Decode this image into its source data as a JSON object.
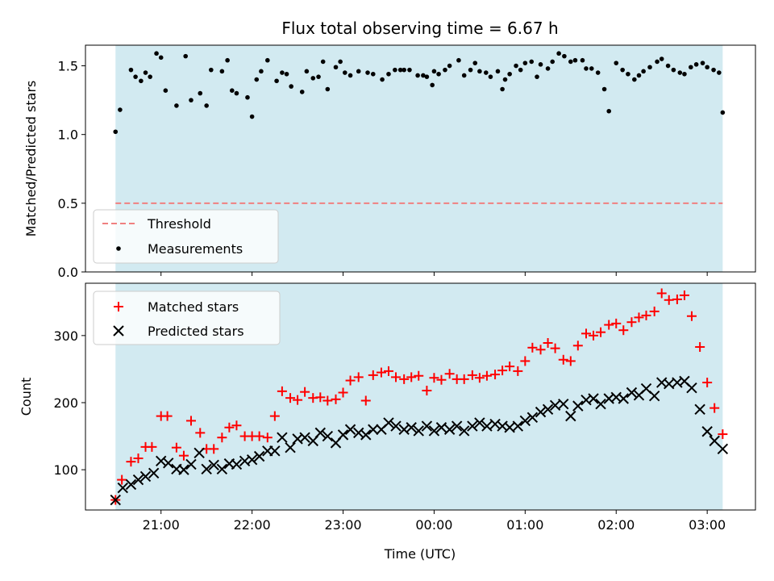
{
  "chart_data": {
    "title": "Flux total observing time = 6.67 h",
    "xlabel": "Time (UTC)",
    "xticks": [
      "21:00",
      "22:00",
      "23:00",
      "00:00",
      "01:00",
      "02:00",
      "03:00"
    ],
    "shade_color": "#add8e6",
    "panels": [
      {
        "type": "scatter",
        "ylabel": "Matched/Predicted stars",
        "ylim": [
          0,
          1.65
        ],
        "yticks": [
          "0.0",
          "0.5",
          "1.0",
          "1.5"
        ],
        "legend_position": "lower-left",
        "threshold": {
          "name": "Threshold",
          "y": 0.5,
          "color": "#f08080"
        },
        "series": [
          {
            "name": "Measurements",
            "color": "#000000",
            "marker": "dot",
            "x_hours": [
              -0.5,
              -0.45,
              -0.33,
              -0.28,
              -0.22,
              -0.17,
              -0.12,
              -0.05,
              0.0,
              0.05,
              0.17,
              0.27,
              0.33,
              0.43,
              0.5,
              0.55,
              0.67,
              0.73,
              0.78,
              0.83,
              0.95,
              1.0,
              1.05,
              1.1,
              1.17,
              1.27,
              1.33,
              1.38,
              1.43,
              1.55,
              1.6,
              1.67,
              1.73,
              1.78,
              1.83,
              1.92,
              1.97,
              2.02,
              2.08,
              2.17,
              2.27,
              2.33,
              2.43,
              2.5,
              2.57,
              2.63,
              2.67,
              2.73,
              2.82,
              2.88,
              2.92,
              2.98,
              3.0,
              3.05,
              3.12,
              3.17,
              3.27,
              3.33,
              3.4,
              3.45,
              3.5,
              3.57,
              3.62,
              3.7,
              3.75,
              3.78,
              3.83,
              3.9,
              3.95,
              4.0,
              4.07,
              4.13,
              4.17,
              4.25,
              4.3,
              4.37,
              4.43,
              4.5,
              4.55,
              4.63,
              4.67,
              4.73,
              4.8,
              4.87,
              4.92,
              5.0,
              5.07,
              5.13,
              5.2,
              5.25,
              5.3,
              5.37,
              5.45,
              5.5,
              5.57,
              5.63,
              5.7,
              5.75,
              5.82,
              5.88,
              5.95,
              6.0,
              6.07,
              6.13,
              6.17
            ],
            "y": [
              1.02,
              1.18,
              1.47,
              1.42,
              1.39,
              1.45,
              1.42,
              1.59,
              1.56,
              1.32,
              1.21,
              1.57,
              1.25,
              1.3,
              1.21,
              1.47,
              1.46,
              1.54,
              1.32,
              1.3,
              1.27,
              1.13,
              1.4,
              1.46,
              1.54,
              1.39,
              1.45,
              1.44,
              1.35,
              1.31,
              1.46,
              1.41,
              1.42,
              1.53,
              1.33,
              1.49,
              1.53,
              1.45,
              1.43,
              1.46,
              1.45,
              1.44,
              1.4,
              1.44,
              1.47,
              1.47,
              1.47,
              1.47,
              1.43,
              1.43,
              1.42,
              1.36,
              1.46,
              1.44,
              1.47,
              1.5,
              1.54,
              1.43,
              1.47,
              1.52,
              1.46,
              1.45,
              1.42,
              1.46,
              1.33,
              1.4,
              1.44,
              1.5,
              1.47,
              1.52,
              1.53,
              1.42,
              1.51,
              1.48,
              1.53,
              1.59,
              1.57,
              1.53,
              1.54,
              1.54,
              1.48,
              1.48,
              1.45,
              1.33,
              1.17,
              1.52,
              1.47,
              1.44,
              1.4,
              1.43,
              1.46,
              1.49,
              1.53,
              1.55,
              1.5,
              1.47,
              1.45,
              1.44,
              1.49,
              1.51,
              1.52,
              1.49,
              1.47,
              1.45,
              1.16
            ]
          }
        ]
      },
      {
        "type": "scatter",
        "ylabel": "Count",
        "ylim": [
          40,
          378
        ],
        "yticks": [
          "100",
          "200",
          "300"
        ],
        "legend_position": "upper-left",
        "series": [
          {
            "name": "Matched stars",
            "color": "#ff0000",
            "marker": "plus",
            "x_hours": [
              -0.5,
              -0.43,
              -0.33,
              -0.25,
              -0.17,
              -0.1,
              0.0,
              0.07,
              0.17,
              0.25,
              0.33,
              0.43,
              0.5,
              0.58,
              0.67,
              0.75,
              0.83,
              0.92,
              1.0,
              1.08,
              1.17,
              1.25,
              1.33,
              1.42,
              1.5,
              1.58,
              1.67,
              1.75,
              1.83,
              1.92,
              2.0,
              2.08,
              2.17,
              2.25,
              2.33,
              2.42,
              2.5,
              2.58,
              2.67,
              2.75,
              2.83,
              2.92,
              3.0,
              3.08,
              3.17,
              3.25,
              3.33,
              3.42,
              3.5,
              3.58,
              3.67,
              3.75,
              3.83,
              3.92,
              4.0,
              4.08,
              4.17,
              4.25,
              4.33,
              4.42,
              4.5,
              4.58,
              4.67,
              4.75,
              4.83,
              4.92,
              5.0,
              5.08,
              5.17,
              5.25,
              5.33,
              5.42,
              5.5,
              5.58,
              5.67,
              5.75,
              5.83,
              5.92,
              6.0,
              6.08,
              6.17
            ],
            "y": [
              55,
              85,
              112,
              117,
              134,
              134,
              180,
              180,
              133,
              121,
              173,
              155,
              131,
              131,
              148,
              163,
              166,
              150,
              150,
              150,
              148,
              180,
              217,
              207,
              204,
              216,
              207,
              208,
              203,
              205,
              215,
              233,
              238,
              203,
              241,
              245,
              247,
              238,
              235,
              238,
              240,
              218,
              237,
              234,
              243,
              235,
              235,
              241,
              237,
              240,
              242,
              248,
              254,
              247,
              262,
              282,
              279,
              289,
              281,
              264,
              262,
              285,
              303,
              300,
              305,
              316,
              318,
              308,
              320,
              327,
              330,
              336,
              363,
              353,
              354,
              360,
              329,
              283,
              230,
              192,
              153
            ]
          },
          {
            "name": "Predicted stars",
            "color": "#000000",
            "marker": "x",
            "x_hours": [
              -0.5,
              -0.42,
              -0.33,
              -0.25,
              -0.17,
              -0.08,
              0.0,
              0.08,
              0.17,
              0.25,
              0.33,
              0.42,
              0.5,
              0.58,
              0.67,
              0.75,
              0.83,
              0.92,
              1.0,
              1.08,
              1.17,
              1.25,
              1.33,
              1.42,
              1.5,
              1.58,
              1.67,
              1.75,
              1.83,
              1.92,
              2.0,
              2.08,
              2.17,
              2.25,
              2.33,
              2.42,
              2.5,
              2.58,
              2.67,
              2.75,
              2.83,
              2.92,
              3.0,
              3.08,
              3.17,
              3.25,
              3.33,
              3.42,
              3.5,
              3.58,
              3.67,
              3.75,
              3.83,
              3.92,
              4.0,
              4.08,
              4.17,
              4.25,
              4.33,
              4.42,
              4.5,
              4.58,
              4.67,
              4.75,
              4.83,
              4.92,
              5.0,
              5.08,
              5.17,
              5.25,
              5.33,
              5.42,
              5.5,
              5.58,
              5.67,
              5.75,
              5.83,
              5.92,
              6.0,
              6.08,
              6.17
            ],
            "y": [
              55,
              73,
              78,
              85,
              90,
              95,
              113,
              110,
              101,
              100,
              108,
              125,
              101,
              107,
              101,
              109,
              108,
              113,
              115,
              120,
              128,
              128,
              148,
              133,
              146,
              148,
              143,
              155,
              150,
              140,
              152,
              160,
              155,
              152,
              160,
              160,
              170,
              165,
              160,
              163,
              158,
              165,
              158,
              163,
              160,
              165,
              158,
              165,
              170,
              165,
              168,
              165,
              163,
              165,
              173,
              178,
              186,
              190,
              196,
              198,
              180,
              195,
              204,
              206,
              198,
              206,
              208,
              206,
              215,
              211,
              221,
              210,
              230,
              228,
              230,
              232,
              222,
              190,
              157,
              143,
              131
            ]
          }
        ]
      }
    ]
  }
}
